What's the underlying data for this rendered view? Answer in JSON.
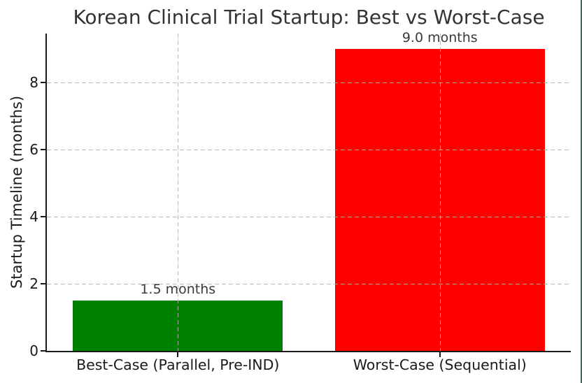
{
  "figure": {
    "background": "#ffffff",
    "right_edge_color": "#4a6251"
  },
  "chart_data": {
    "type": "bar",
    "title": "Korean Clinical Trial Startup: Best vs Worst-Case",
    "categories": [
      "Best-Case (Parallel, Pre-IND)",
      "Worst-Case (Sequential)"
    ],
    "values": [
      1.5,
      9.0
    ],
    "bar_labels": [
      "1.5 months",
      "9.0 months"
    ],
    "bar_colors": [
      "#008000",
      "#ff0000"
    ],
    "xlabel": "",
    "ylabel": "Startup Timeline (months)",
    "ylim": [
      0,
      9.45
    ],
    "yticks": [
      0,
      2,
      4,
      6,
      8
    ],
    "grid": "dashed",
    "grid_on": true,
    "legend": "none",
    "bar_width_fraction": 0.8
  }
}
